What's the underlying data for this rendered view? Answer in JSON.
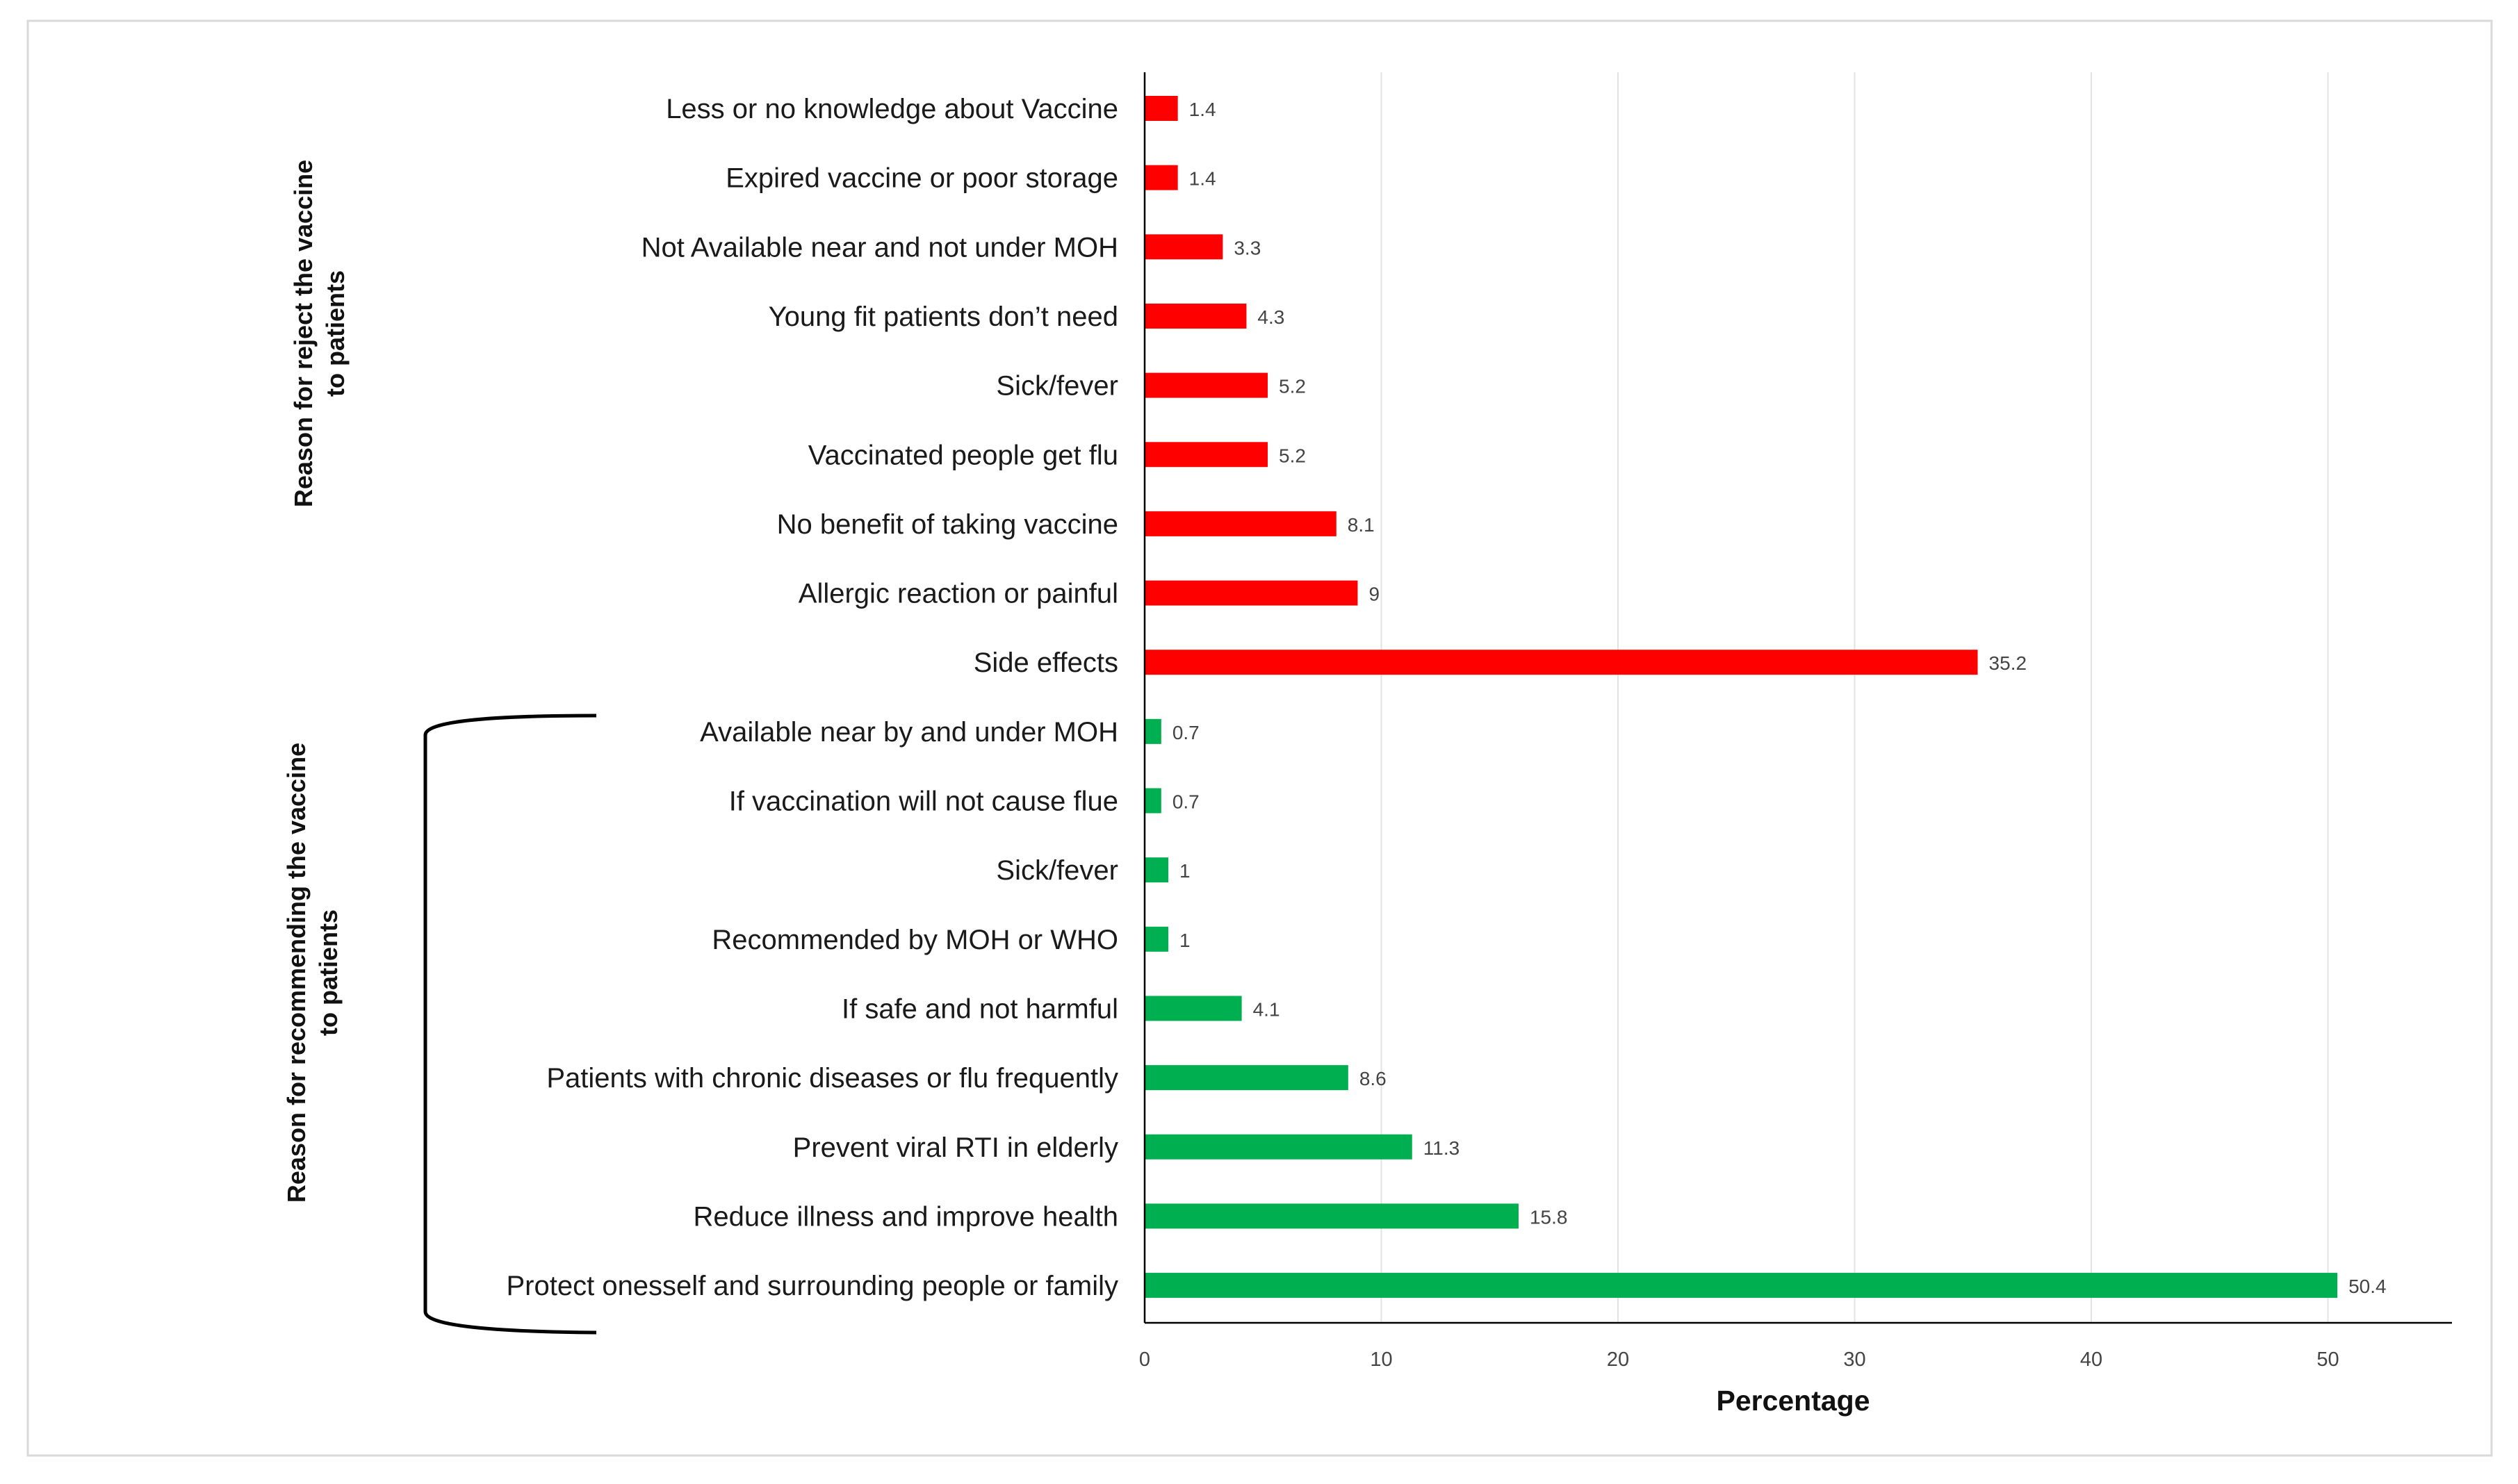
{
  "chart_data": {
    "type": "bar",
    "orientation": "horizontal",
    "xlabel": "Percentage",
    "ylabel": "",
    "xlim": [
      0,
      55
    ],
    "x_ticks": [
      0,
      10,
      20,
      30,
      40,
      50
    ],
    "grid": "vertical",
    "groups": [
      {
        "name": "Reason for reject the vaccine to patients",
        "title_lines": [
          "Reason for reject the vaccine",
          "to patients"
        ],
        "color": "#ff0000",
        "categories": [
          "Less or no knowledge about Vaccine",
          "Expired vaccine or poor storage",
          "Not Available near and not under MOH",
          "Young fit patients don’t need",
          "Sick/fever",
          "Vaccinated people get flu",
          "No benefit of taking vaccine",
          "Allergic reaction or painful",
          "Side effects"
        ],
        "values": [
          1.4,
          1.4,
          3.3,
          4.3,
          5.2,
          5.2,
          8.1,
          9,
          35.2
        ]
      },
      {
        "name": "Reason for recommending the vaccine to patients",
        "title_lines": [
          "Reason for recommending the vaccine",
          "to patients"
        ],
        "color": "#00b050",
        "categories": [
          "Available near by and under MOH",
          "If vaccination will not cause flue",
          "Sick/fever",
          "Recommended by MOH or WHO",
          "If safe and not harmful",
          "Patients with chronic diseases or flu frequently",
          "Prevent viral RTI in elderly",
          "Reduce illness and improve health",
          "Protect onesself and surrounding people or family"
        ],
        "values": [
          0.7,
          0.7,
          1,
          1,
          4.1,
          8.6,
          11.3,
          15.8,
          50.4
        ]
      }
    ]
  }
}
